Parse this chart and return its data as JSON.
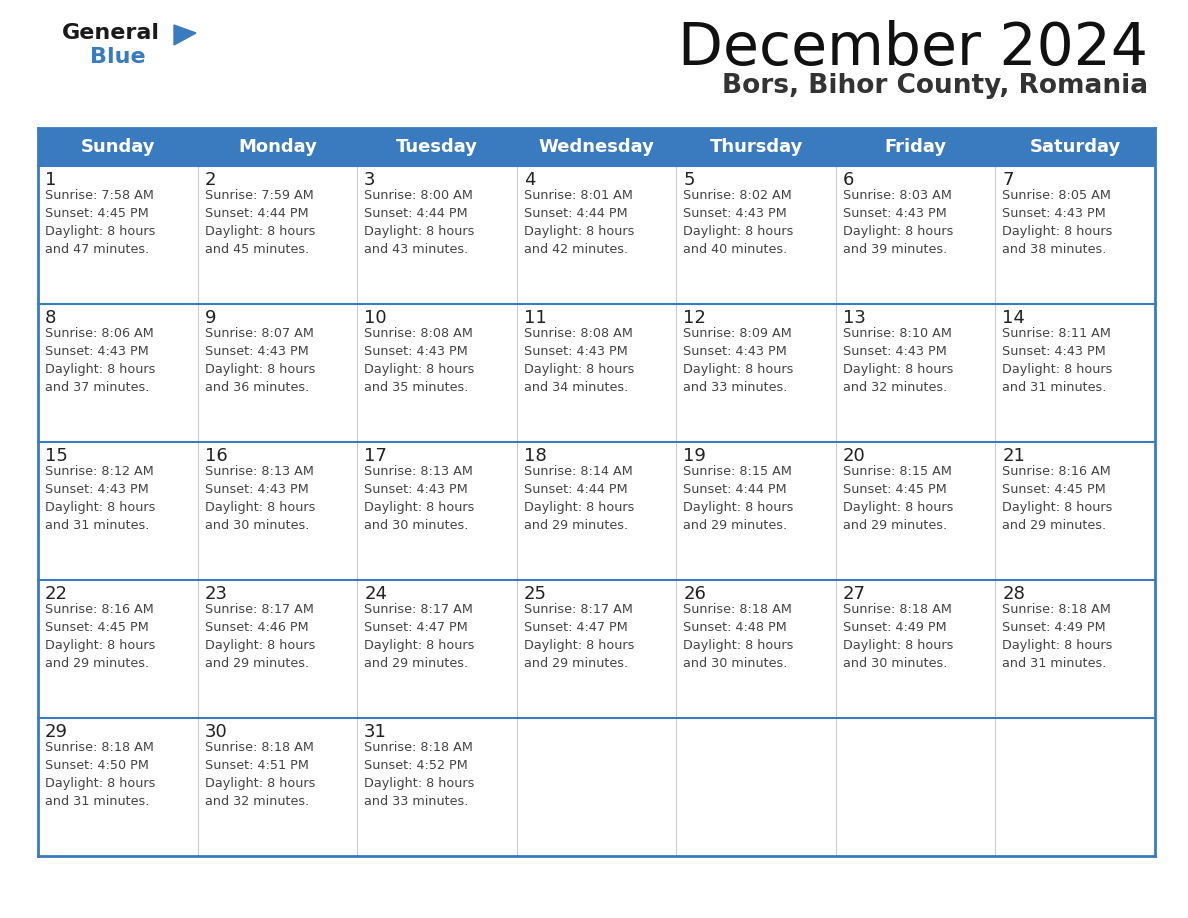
{
  "title": "December 2024",
  "subtitle": "Bors, Bihor County, Romania",
  "header_color": "#3a7bbf",
  "header_text_color": "#ffffff",
  "border_color": "#3a7bbf",
  "row_separator_color": "#3a7bbf",
  "col_separator_color": "#cccccc",
  "days_of_week": [
    "Sunday",
    "Monday",
    "Tuesday",
    "Wednesday",
    "Thursday",
    "Friday",
    "Saturday"
  ],
  "calendar": [
    [
      {
        "day": "1",
        "sunrise": "7:58 AM",
        "sunset": "4:45 PM",
        "daylight_h": "8 hours",
        "daylight_m": "47 minutes."
      },
      {
        "day": "2",
        "sunrise": "7:59 AM",
        "sunset": "4:44 PM",
        "daylight_h": "8 hours",
        "daylight_m": "45 minutes."
      },
      {
        "day": "3",
        "sunrise": "8:00 AM",
        "sunset": "4:44 PM",
        "daylight_h": "8 hours",
        "daylight_m": "43 minutes."
      },
      {
        "day": "4",
        "sunrise": "8:01 AM",
        "sunset": "4:44 PM",
        "daylight_h": "8 hours",
        "daylight_m": "42 minutes."
      },
      {
        "day": "5",
        "sunrise": "8:02 AM",
        "sunset": "4:43 PM",
        "daylight_h": "8 hours",
        "daylight_m": "40 minutes."
      },
      {
        "day": "6",
        "sunrise": "8:03 AM",
        "sunset": "4:43 PM",
        "daylight_h": "8 hours",
        "daylight_m": "39 minutes."
      },
      {
        "day": "7",
        "sunrise": "8:05 AM",
        "sunset": "4:43 PM",
        "daylight_h": "8 hours",
        "daylight_m": "38 minutes."
      }
    ],
    [
      {
        "day": "8",
        "sunrise": "8:06 AM",
        "sunset": "4:43 PM",
        "daylight_h": "8 hours",
        "daylight_m": "37 minutes."
      },
      {
        "day": "9",
        "sunrise": "8:07 AM",
        "sunset": "4:43 PM",
        "daylight_h": "8 hours",
        "daylight_m": "36 minutes."
      },
      {
        "day": "10",
        "sunrise": "8:08 AM",
        "sunset": "4:43 PM",
        "daylight_h": "8 hours",
        "daylight_m": "35 minutes."
      },
      {
        "day": "11",
        "sunrise": "8:08 AM",
        "sunset": "4:43 PM",
        "daylight_h": "8 hours",
        "daylight_m": "34 minutes."
      },
      {
        "day": "12",
        "sunrise": "8:09 AM",
        "sunset": "4:43 PM",
        "daylight_h": "8 hours",
        "daylight_m": "33 minutes."
      },
      {
        "day": "13",
        "sunrise": "8:10 AM",
        "sunset": "4:43 PM",
        "daylight_h": "8 hours",
        "daylight_m": "32 minutes."
      },
      {
        "day": "14",
        "sunrise": "8:11 AM",
        "sunset": "4:43 PM",
        "daylight_h": "8 hours",
        "daylight_m": "31 minutes."
      }
    ],
    [
      {
        "day": "15",
        "sunrise": "8:12 AM",
        "sunset": "4:43 PM",
        "daylight_h": "8 hours",
        "daylight_m": "31 minutes."
      },
      {
        "day": "16",
        "sunrise": "8:13 AM",
        "sunset": "4:43 PM",
        "daylight_h": "8 hours",
        "daylight_m": "30 minutes."
      },
      {
        "day": "17",
        "sunrise": "8:13 AM",
        "sunset": "4:43 PM",
        "daylight_h": "8 hours",
        "daylight_m": "30 minutes."
      },
      {
        "day": "18",
        "sunrise": "8:14 AM",
        "sunset": "4:44 PM",
        "daylight_h": "8 hours",
        "daylight_m": "29 minutes."
      },
      {
        "day": "19",
        "sunrise": "8:15 AM",
        "sunset": "4:44 PM",
        "daylight_h": "8 hours",
        "daylight_m": "29 minutes."
      },
      {
        "day": "20",
        "sunrise": "8:15 AM",
        "sunset": "4:45 PM",
        "daylight_h": "8 hours",
        "daylight_m": "29 minutes."
      },
      {
        "day": "21",
        "sunrise": "8:16 AM",
        "sunset": "4:45 PM",
        "daylight_h": "8 hours",
        "daylight_m": "29 minutes."
      }
    ],
    [
      {
        "day": "22",
        "sunrise": "8:16 AM",
        "sunset": "4:45 PM",
        "daylight_h": "8 hours",
        "daylight_m": "29 minutes."
      },
      {
        "day": "23",
        "sunrise": "8:17 AM",
        "sunset": "4:46 PM",
        "daylight_h": "8 hours",
        "daylight_m": "29 minutes."
      },
      {
        "day": "24",
        "sunrise": "8:17 AM",
        "sunset": "4:47 PM",
        "daylight_h": "8 hours",
        "daylight_m": "29 minutes."
      },
      {
        "day": "25",
        "sunrise": "8:17 AM",
        "sunset": "4:47 PM",
        "daylight_h": "8 hours",
        "daylight_m": "29 minutes."
      },
      {
        "day": "26",
        "sunrise": "8:18 AM",
        "sunset": "4:48 PM",
        "daylight_h": "8 hours",
        "daylight_m": "30 minutes."
      },
      {
        "day": "27",
        "sunrise": "8:18 AM",
        "sunset": "4:49 PM",
        "daylight_h": "8 hours",
        "daylight_m": "30 minutes."
      },
      {
        "day": "28",
        "sunrise": "8:18 AM",
        "sunset": "4:49 PM",
        "daylight_h": "8 hours",
        "daylight_m": "31 minutes."
      }
    ],
    [
      {
        "day": "29",
        "sunrise": "8:18 AM",
        "sunset": "4:50 PM",
        "daylight_h": "8 hours",
        "daylight_m": "31 minutes."
      },
      {
        "day": "30",
        "sunrise": "8:18 AM",
        "sunset": "4:51 PM",
        "daylight_h": "8 hours",
        "daylight_m": "32 minutes."
      },
      {
        "day": "31",
        "sunrise": "8:18 AM",
        "sunset": "4:52 PM",
        "daylight_h": "8 hours",
        "daylight_m": "33 minutes."
      },
      null,
      null,
      null,
      null
    ]
  ]
}
